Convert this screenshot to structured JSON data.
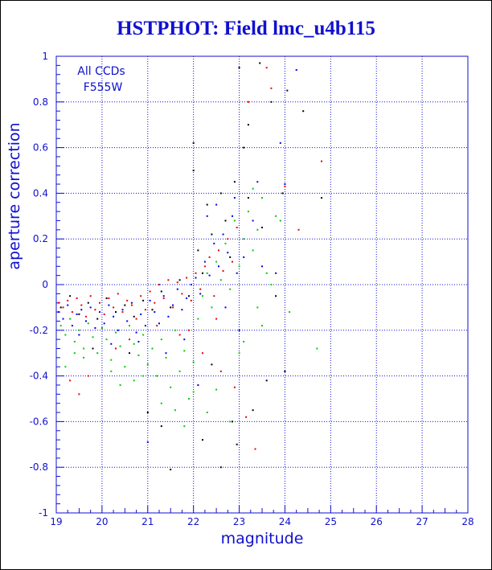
{
  "chart_data": {
    "type": "scatter",
    "title": "HSTPHOT: Field lmc_u4b115",
    "xlabel": "magnitude",
    "ylabel": "aperture correction",
    "xlim": [
      19,
      28
    ],
    "ylim": [
      -1,
      1
    ],
    "x_ticks": [
      19,
      20,
      21,
      22,
      23,
      24,
      25,
      26,
      27,
      28
    ],
    "y_ticks": [
      -1,
      -0.8,
      -0.6,
      -0.4,
      -0.2,
      0,
      0.2,
      0.4,
      0.6,
      0.8,
      1
    ],
    "grid": "dotted",
    "annotations": [
      "All CCDs",
      "F555W"
    ],
    "series": [
      {
        "color": "#ee0000",
        "points": [
          [
            19.05,
            -0.08
          ],
          [
            19.15,
            -0.1
          ],
          [
            19.25,
            -0.07
          ],
          [
            19.35,
            -0.12
          ],
          [
            19.45,
            -0.06
          ],
          [
            19.55,
            -0.09
          ],
          [
            19.65,
            -0.14
          ],
          [
            19.75,
            -0.05
          ],
          [
            19.85,
            -0.11
          ],
          [
            19.95,
            -0.08
          ],
          [
            20.05,
            -0.13
          ],
          [
            20.15,
            -0.06
          ],
          [
            20.25,
            -0.1
          ],
          [
            20.35,
            -0.04
          ],
          [
            20.45,
            -0.12
          ],
          [
            20.55,
            -0.07
          ],
          [
            20.65,
            -0.09
          ],
          [
            20.75,
            -0.15
          ],
          [
            20.85,
            -0.05
          ],
          [
            20.95,
            -0.11
          ],
          [
            21.05,
            -0.03
          ],
          [
            21.15,
            -0.08
          ],
          [
            21.25,
            0.0
          ],
          [
            21.35,
            -0.06
          ],
          [
            21.45,
            0.02
          ],
          [
            21.55,
            -0.1
          ],
          [
            21.65,
            0.01
          ],
          [
            21.75,
            -0.04
          ],
          [
            21.85,
            0.03
          ],
          [
            21.95,
            -0.07
          ],
          [
            22.05,
            0.05
          ],
          [
            22.15,
            -0.02
          ],
          [
            22.25,
            0.08
          ],
          [
            22.35,
            0.12
          ],
          [
            22.45,
            -0.05
          ],
          [
            22.55,
            0.15
          ],
          [
            22.65,
            0.06
          ],
          [
            22.75,
            0.2
          ],
          [
            22.85,
            0.1
          ],
          [
            22.95,
            0.25
          ],
          [
            19.3,
            -0.42
          ],
          [
            19.5,
            -0.48
          ],
          [
            19.7,
            -0.4
          ],
          [
            20.3,
            -0.28
          ],
          [
            20.6,
            -0.24
          ],
          [
            21.2,
            -0.18
          ],
          [
            21.7,
            -0.22
          ],
          [
            22.2,
            -0.3
          ],
          [
            22.6,
            -0.38
          ],
          [
            22.9,
            -0.45
          ],
          [
            23.15,
            -0.58
          ],
          [
            23.35,
            -0.72
          ],
          [
            23.6,
            0.95
          ],
          [
            23.7,
            0.86
          ],
          [
            24.3,
            0.24
          ],
          [
            24.0,
            0.43
          ],
          [
            24.8,
            0.54
          ],
          [
            23.2,
            0.8
          ],
          [
            22.5,
            -0.15
          ],
          [
            21.9,
            -0.2
          ]
        ]
      },
      {
        "color": "#00cc00",
        "points": [
          [
            19.1,
            -0.18
          ],
          [
            19.2,
            -0.22
          ],
          [
            19.3,
            -0.15
          ],
          [
            19.4,
            -0.25
          ],
          [
            19.5,
            -0.2
          ],
          [
            19.6,
            -0.28
          ],
          [
            19.7,
            -0.17
          ],
          [
            19.8,
            -0.23
          ],
          [
            19.9,
            -0.3
          ],
          [
            20.0,
            -0.19
          ],
          [
            20.1,
            -0.24
          ],
          [
            20.2,
            -0.33
          ],
          [
            20.3,
            -0.21
          ],
          [
            20.4,
            -0.27
          ],
          [
            20.5,
            -0.36
          ],
          [
            20.6,
            -0.18
          ],
          [
            20.7,
            -0.26
          ],
          [
            20.8,
            -0.31
          ],
          [
            20.9,
            -0.22
          ],
          [
            21.0,
            -0.35
          ],
          [
            21.1,
            -0.28
          ],
          [
            21.2,
            -0.4
          ],
          [
            21.3,
            -0.24
          ],
          [
            21.4,
            -0.32
          ],
          [
            21.5,
            -0.45
          ],
          [
            21.6,
            -0.2
          ],
          [
            21.7,
            -0.38
          ],
          [
            21.8,
            -0.29
          ],
          [
            21.9,
            -0.5
          ],
          [
            22.0,
            -0.34
          ],
          [
            22.1,
            -0.15
          ],
          [
            22.2,
            -0.05
          ],
          [
            22.3,
            0.05
          ],
          [
            22.4,
            -0.1
          ],
          [
            22.5,
            0.1
          ],
          [
            22.6,
            0.02
          ],
          [
            22.7,
            0.18
          ],
          [
            22.8,
            -0.02
          ],
          [
            22.9,
            0.28
          ],
          [
            23.0,
            0.08
          ],
          [
            23.1,
            0.2
          ],
          [
            23.2,
            0.32
          ],
          [
            23.3,
            0.15
          ],
          [
            23.4,
            0.24
          ],
          [
            23.5,
            0.38
          ],
          [
            23.6,
            0.05
          ],
          [
            23.8,
            0.3
          ],
          [
            23.9,
            0.28
          ],
          [
            23.3,
            0.42
          ],
          [
            24.7,
            -0.28
          ],
          [
            19.2,
            -0.36
          ],
          [
            19.6,
            -0.32
          ],
          [
            20.4,
            -0.44
          ],
          [
            20.9,
            -0.4
          ],
          [
            21.3,
            -0.52
          ],
          [
            21.6,
            -0.55
          ],
          [
            22.0,
            -0.47
          ],
          [
            22.5,
            -0.46
          ],
          [
            22.8,
            -0.6
          ],
          [
            23.1,
            -0.25
          ],
          [
            23.4,
            -0.1
          ],
          [
            23.0,
            -0.3
          ],
          [
            21.8,
            -0.62
          ],
          [
            20.2,
            -0.38
          ],
          [
            19.4,
            -0.3
          ],
          [
            23.7,
            0.0
          ],
          [
            24.1,
            -0.12
          ],
          [
            23.5,
            -0.18
          ],
          [
            22.3,
            -0.56
          ],
          [
            20.7,
            -0.42
          ]
        ]
      },
      {
        "color": "#0000ee",
        "points": [
          [
            19.05,
            -0.12
          ],
          [
            19.15,
            -0.15
          ],
          [
            19.25,
            -0.09
          ],
          [
            19.35,
            -0.18
          ],
          [
            19.45,
            -0.13
          ],
          [
            19.55,
            -0.11
          ],
          [
            19.65,
            -0.16
          ],
          [
            19.75,
            -0.1
          ],
          [
            19.85,
            -0.19
          ],
          [
            19.95,
            -0.12
          ],
          [
            20.05,
            -0.17
          ],
          [
            20.15,
            -0.09
          ],
          [
            20.25,
            -0.14
          ],
          [
            20.35,
            -0.2
          ],
          [
            20.45,
            -0.11
          ],
          [
            20.55,
            -0.16
          ],
          [
            20.65,
            -0.08
          ],
          [
            20.75,
            -0.21
          ],
          [
            20.85,
            -0.13
          ],
          [
            20.95,
            -0.18
          ],
          [
            21.05,
            -0.07
          ],
          [
            21.15,
            -0.12
          ],
          [
            21.25,
            -0.17
          ],
          [
            21.35,
            -0.05
          ],
          [
            21.45,
            -0.14
          ],
          [
            21.55,
            -0.09
          ],
          [
            21.65,
            -0.02
          ],
          [
            21.75,
            -0.11
          ],
          [
            21.85,
            -0.06
          ],
          [
            21.95,
            0.0
          ],
          [
            22.05,
            0.03
          ],
          [
            22.15,
            -0.04
          ],
          [
            22.25,
            0.1
          ],
          [
            22.35,
            0.04
          ],
          [
            22.45,
            0.18
          ],
          [
            22.55,
            0.08
          ],
          [
            22.65,
            0.22
          ],
          [
            22.75,
            0.14
          ],
          [
            22.85,
            0.3
          ],
          [
            22.95,
            0.05
          ],
          [
            23.1,
            0.12
          ],
          [
            23.3,
            0.28
          ],
          [
            23.5,
            0.08
          ],
          [
            23.8,
            0.05
          ],
          [
            24.0,
            0.44
          ],
          [
            24.25,
            0.94
          ],
          [
            23.9,
            0.62
          ],
          [
            23.4,
            0.45
          ],
          [
            22.9,
            0.38
          ],
          [
            21.0,
            -0.69
          ],
          [
            22.3,
            0.3
          ],
          [
            22.5,
            0.35
          ],
          [
            21.8,
            -0.24
          ],
          [
            20.2,
            -0.26
          ],
          [
            19.5,
            -0.22
          ],
          [
            21.4,
            -0.3
          ],
          [
            22.1,
            -0.44
          ],
          [
            20.8,
            -0.25
          ],
          [
            22.7,
            -0.1
          ],
          [
            23.0,
            -0.2
          ]
        ]
      },
      {
        "color": "#000000",
        "points": [
          [
            19.1,
            -0.1
          ],
          [
            19.3,
            -0.05
          ],
          [
            19.5,
            -0.13
          ],
          [
            19.7,
            -0.08
          ],
          [
            19.9,
            -0.15
          ],
          [
            20.1,
            -0.06
          ],
          [
            20.3,
            -0.12
          ],
          [
            20.5,
            -0.09
          ],
          [
            20.7,
            -0.14
          ],
          [
            20.9,
            -0.07
          ],
          [
            21.1,
            -0.11
          ],
          [
            21.3,
            -0.03
          ],
          [
            21.5,
            -0.1
          ],
          [
            21.7,
            0.02
          ],
          [
            21.9,
            -0.05
          ],
          [
            22.1,
            0.15
          ],
          [
            22.3,
            0.35
          ],
          [
            22.4,
            0.22
          ],
          [
            22.6,
            0.4
          ],
          [
            22.7,
            0.28
          ],
          [
            22.8,
            0.12
          ],
          [
            22.9,
            0.45
          ],
          [
            23.0,
            0.95
          ],
          [
            23.2,
            0.7
          ],
          [
            23.45,
            0.97
          ],
          [
            23.7,
            0.8
          ],
          [
            23.95,
            0.4
          ],
          [
            24.05,
            0.85
          ],
          [
            24.4,
            0.76
          ],
          [
            24.8,
            0.38
          ],
          [
            21.5,
            -0.81
          ],
          [
            22.2,
            -0.68
          ],
          [
            22.85,
            -0.6
          ],
          [
            22.95,
            -0.7
          ],
          [
            23.3,
            -0.55
          ],
          [
            22.0,
            0.5
          ],
          [
            22.0,
            0.62
          ],
          [
            23.1,
            0.6
          ],
          [
            23.6,
            -0.42
          ],
          [
            24.0,
            -0.38
          ],
          [
            21.3,
            -0.62
          ],
          [
            20.6,
            -0.3
          ],
          [
            19.8,
            -0.28
          ],
          [
            22.4,
            -0.35
          ],
          [
            23.5,
            0.25
          ],
          [
            23.8,
            -0.05
          ],
          [
            21.0,
            -0.56
          ],
          [
            22.6,
            -0.8
          ],
          [
            23.2,
            0.38
          ],
          [
            22.2,
            0.05
          ]
        ]
      }
    ]
  }
}
